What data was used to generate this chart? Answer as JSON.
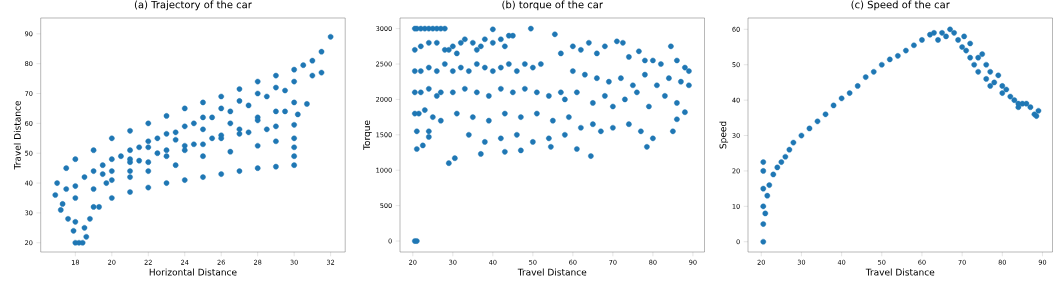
{
  "chart_data": [
    {
      "type": "scatter",
      "title": "(a) Trajectory of the car",
      "xlabel": "Horizontal Distance",
      "ylabel": "Travel Distance",
      "marker": "circle",
      "xlim": [
        16.1,
        32.8
      ],
      "ylim": [
        16.9,
        95.3
      ],
      "xticks": [
        18,
        20,
        22,
        24,
        26,
        28,
        30,
        32
      ],
      "yticks": [
        20,
        30,
        40,
        50,
        60,
        70,
        80,
        90
      ],
      "series": [
        {
          "color": "#1f77b4",
          "x": [
            18,
            18.2,
            18.4,
            18.6,
            17.9,
            18.5,
            17.6,
            18.8,
            17.2,
            19.3,
            16.9,
            17,
            17.5,
            18,
            19,
            20,
            21,
            22,
            23,
            24,
            25,
            26,
            27,
            28,
            29,
            30,
            30.5,
            31,
            31.5,
            32,
            18,
            19,
            20,
            21,
            22,
            23,
            24,
            25,
            26,
            27,
            28,
            29,
            30,
            31,
            31.5,
            19.5,
            21,
            22,
            23.5,
            25,
            26.5,
            28,
            29.5,
            30.7,
            20,
            21.5,
            23,
            24.5,
            26,
            27.5,
            29,
            30.2,
            21,
            22.5,
            24,
            25.5,
            27,
            28.5,
            30,
            19.7,
            21,
            22,
            23.5,
            25,
            26.5,
            28,
            29,
            30,
            30,
            30,
            17.3,
            18,
            19,
            20,
            21,
            22,
            23,
            24,
            25,
            26,
            27,
            28,
            29,
            30,
            18,
            19,
            20,
            21,
            22,
            23,
            24,
            25,
            26,
            27,
            28,
            29,
            30,
            17.5,
            18.5,
            19.5,
            20.5,
            21.5,
            22.5,
            23.5,
            24.5,
            25.5,
            26.5,
            27.5,
            28.5,
            29.5
          ],
          "values": [
            20,
            20,
            20,
            22,
            24,
            25,
            28,
            28,
            31,
            32,
            36,
            40,
            45,
            48,
            51,
            55,
            57.5,
            60,
            62.5,
            65,
            67,
            69,
            71.5,
            74,
            76,
            78,
            79.5,
            81,
            84,
            89,
            39,
            44,
            48,
            51,
            54,
            56.5,
            59,
            62,
            65,
            67.5,
            70,
            72,
            74,
            76,
            77,
            43,
            48,
            52,
            54.5,
            58,
            60,
            62,
            64,
            66.5,
            44,
            47.5,
            51,
            53,
            55,
            57,
            59,
            63,
            47,
            50,
            52.5,
            55,
            56.5,
            58,
            59.5,
            40,
            42,
            44,
            46,
            49,
            50.5,
            52.5,
            54,
            55,
            52,
            49,
            33,
            27,
            32,
            35,
            37,
            38.5,
            40,
            41,
            42,
            43,
            44,
            45,
            45.5,
            46,
            35,
            38,
            41,
            44,
            47,
            49,
            51,
            53,
            56,
            58,
            61,
            64,
            67,
            38,
            42,
            46,
            49,
            52,
            55,
            57,
            60,
            62,
            64,
            66,
            69,
            71
          ]
        }
      ]
    },
    {
      "type": "scatter",
      "title": "(b) torque of the car",
      "xlabel": "Travel Distance",
      "ylabel": "Torque",
      "marker": "circle",
      "xlim": [
        16.8,
        92.9
      ],
      "ylim": [
        -155,
        3150
      ],
      "xticks": [
        20,
        30,
        40,
        50,
        60,
        70,
        80,
        90
      ],
      "yticks": [
        0,
        500,
        1000,
        1500,
        2000,
        2500,
        3000
      ],
      "series": [
        {
          "color": "#1f77b4",
          "x": [
            20.5,
            21,
            20.5,
            21,
            22,
            23,
            24,
            25,
            26,
            27,
            28,
            20.5,
            22,
            24,
            26,
            28,
            20.5,
            22,
            24,
            26,
            28,
            20.5,
            22,
            24,
            26,
            27,
            20.5,
            21.5,
            23,
            25,
            27,
            21,
            24,
            21,
            22.5,
            24,
            29,
            30,
            31,
            32,
            33,
            35,
            36,
            37,
            38,
            40,
            42,
            43,
            44,
            45,
            30,
            32,
            34,
            36,
            38,
            40,
            42,
            44,
            46,
            48,
            50,
            52,
            30,
            33,
            36,
            39,
            42,
            45,
            48,
            51,
            54,
            57,
            31,
            35,
            39,
            43,
            47,
            51,
            55,
            59,
            34,
            38,
            42,
            46,
            50,
            54,
            58,
            40,
            49.5,
            55.5,
            57,
            60,
            62,
            64,
            66,
            68,
            71,
            72.5,
            74,
            76.5,
            78,
            80,
            82,
            84.5,
            86,
            88,
            89,
            60,
            63,
            66,
            69,
            72,
            75,
            78,
            81,
            84,
            87,
            89,
            58,
            61,
            65,
            68,
            70,
            73,
            76,
            79,
            83,
            86,
            88,
            62,
            65,
            67,
            70,
            74,
            77,
            80,
            85,
            61,
            64.5,
            78.5,
            86,
            54.5,
            43,
            47,
            37,
            29,
            30.5
          ],
          "values": [
            0,
            0,
            3000,
            3000,
            3000,
            3000,
            3000,
            3000,
            3000,
            3000,
            3000,
            2700,
            2750,
            2800,
            2800,
            2700,
            2400,
            2400,
            2450,
            2400,
            2500,
            2100,
            2100,
            2150,
            2050,
            2100,
            1800,
            1800,
            1850,
            1750,
            1700,
            1550,
            1550,
            1300,
            1350,
            1470,
            2700,
            2750,
            2650,
            2800,
            2850,
            2800,
            2700,
            2750,
            2850,
            2800,
            2850,
            2750,
            2900,
            2900,
            2400,
            2450,
            2400,
            2500,
            2450,
            2400,
            2450,
            2500,
            2400,
            2500,
            2450,
            2500,
            2100,
            2150,
            2100,
            2050,
            2150,
            2100,
            2150,
            2100,
            2050,
            2100,
            1800,
            1750,
            1700,
            1800,
            1750,
            1800,
            1700,
            1750,
            1500,
            1400,
            1450,
            1500,
            1400,
            1450,
            1500,
            2990,
            3000,
            2920,
            2650,
            2750,
            2700,
            2800,
            2650,
            2750,
            2820,
            2800,
            2600,
            2680,
            2550,
            2550,
            2500,
            2750,
            2550,
            2450,
            2400,
            2400,
            2350,
            2300,
            2250,
            2300,
            2200,
            2350,
            2200,
            2300,
            2250,
            2200,
            2000,
            2100,
            1950,
            2050,
            1900,
            2000,
            2100,
            1900,
            2050,
            1950,
            1820,
            1600,
            1650,
            1550,
            1600,
            1650,
            1550,
            1450,
            1550,
            1300,
            1200,
            1330,
            1720,
            1330,
            1260,
            1280,
            1230,
            1100,
            1170
          ]
        }
      ]
    },
    {
      "type": "scatter",
      "title": "(c) Speed of the car",
      "xlabel": "Travel Distance",
      "ylabel": "Speed",
      "marker": "circle",
      "xlim": [
        16.7,
        92.5
      ],
      "ylim": [
        -2.9,
        63.2
      ],
      "xticks": [
        20,
        30,
        40,
        50,
        60,
        70,
        80,
        90
      ],
      "yticks": [
        0,
        10,
        20,
        30,
        40,
        50,
        60
      ],
      "series": [
        {
          "color": "#1f77b4",
          "x": [
            20.5,
            20.5,
            20.5,
            20.5,
            20.5,
            20.5,
            21,
            21.5,
            22,
            23,
            24,
            25,
            26,
            27,
            28,
            30,
            32,
            34,
            36,
            38,
            40,
            42,
            44,
            46,
            48,
            50,
            52,
            54,
            56,
            58,
            60,
            62,
            63,
            64,
            65,
            66,
            67,
            68,
            69,
            70,
            70.5,
            71,
            72,
            72,
            73,
            74,
            74,
            75,
            76,
            76,
            77,
            77,
            78,
            79,
            80,
            80,
            81,
            82,
            83,
            84,
            84,
            85,
            86,
            87,
            88,
            89,
            88.5
          ],
          "values": [
            0,
            5,
            10,
            15,
            20,
            22.5,
            8,
            13,
            16,
            19,
            21,
            22.5,
            24,
            26,
            28,
            30,
            32,
            34,
            36,
            38.5,
            40.5,
            42,
            44,
            46.5,
            48,
            50,
            51.5,
            52.5,
            54,
            55.5,
            57,
            58.5,
            59,
            57,
            59,
            58,
            60,
            59,
            57,
            55,
            58,
            54,
            56,
            52,
            50,
            52,
            48,
            53,
            46,
            50,
            48,
            44,
            45,
            47,
            44,
            42,
            43,
            41,
            40,
            38,
            39,
            39,
            39,
            38,
            36,
            37,
            35.5
          ]
        }
      ]
    }
  ]
}
